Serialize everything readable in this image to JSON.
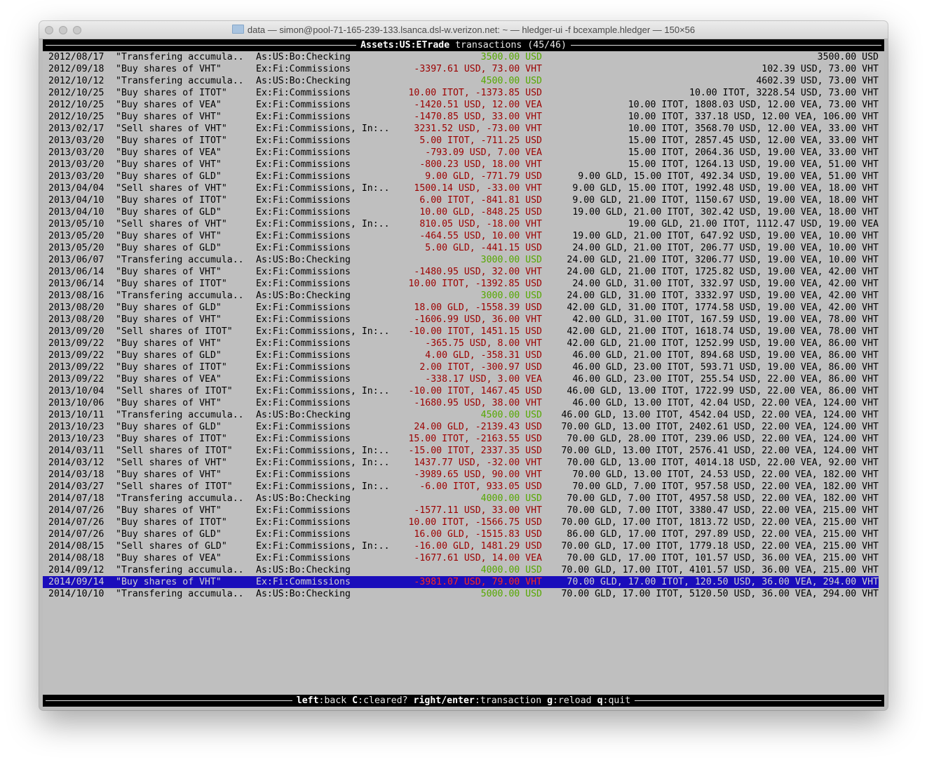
{
  "window": {
    "title": "data — simon@pool-71-165-239-133.lsanca.dsl-w.verizon.net: ~ — hledger-ui -f bcexample.hledger — 150×56"
  },
  "header": {
    "account": "Assets:US:ETrade",
    "suffix": " transactions (45/46)"
  },
  "colors": {
    "negative": "#9c0000",
    "positive": "#56a800",
    "selection": "#1a0dbb"
  },
  "selected_index": 44,
  "rows": [
    {
      "d": "2012/08/17",
      "desc": "\"Transfering accumula..",
      "acct": "As:US:Bo:Checking",
      "amt": "3500.00 USD",
      "bal": "3500.00 USD",
      "pos": true
    },
    {
      "d": "2012/09/18",
      "desc": "\"Buy shares of VHT\"",
      "acct": "Ex:Fi:Commissions",
      "amt": "-3397.61 USD, 73.00 VHT",
      "bal": "102.39 USD, 73.00 VHT",
      "pos": false
    },
    {
      "d": "2012/10/12",
      "desc": "\"Transfering accumula..",
      "acct": "As:US:Bo:Checking",
      "amt": "4500.00 USD",
      "bal": "4602.39 USD, 73.00 VHT",
      "pos": true
    },
    {
      "d": "2012/10/25",
      "desc": "\"Buy shares of ITOT\"",
      "acct": "Ex:Fi:Commissions",
      "amt": "10.00 ITOT, -1373.85 USD",
      "bal": "10.00 ITOT, 3228.54 USD, 73.00 VHT",
      "pos": false
    },
    {
      "d": "2012/10/25",
      "desc": "\"Buy shares of VEA\"",
      "acct": "Ex:Fi:Commissions",
      "amt": "-1420.51 USD, 12.00 VEA",
      "bal": "10.00 ITOT, 1808.03 USD, 12.00 VEA, 73.00 VHT",
      "pos": false
    },
    {
      "d": "2012/10/25",
      "desc": "\"Buy shares of VHT\"",
      "acct": "Ex:Fi:Commissions",
      "amt": "-1470.85 USD, 33.00 VHT",
      "bal": "10.00 ITOT, 337.18 USD, 12.00 VEA, 106.00 VHT",
      "pos": false
    },
    {
      "d": "2013/02/17",
      "desc": "\"Sell shares of VHT\"",
      "acct": "Ex:Fi:Commissions, In:..",
      "amt": "3231.52 USD, -73.00 VHT",
      "bal": "10.00 ITOT, 3568.70 USD, 12.00 VEA, 33.00 VHT",
      "pos": false
    },
    {
      "d": "2013/03/20",
      "desc": "\"Buy shares of ITOT\"",
      "acct": "Ex:Fi:Commissions",
      "amt": "5.00 ITOT, -711.25 USD",
      "bal": "15.00 ITOT, 2857.45 USD, 12.00 VEA, 33.00 VHT",
      "pos": false
    },
    {
      "d": "2013/03/20",
      "desc": "\"Buy shares of VEA\"",
      "acct": "Ex:Fi:Commissions",
      "amt": "-793.09 USD, 7.00 VEA",
      "bal": "15.00 ITOT, 2064.36 USD, 19.00 VEA, 33.00 VHT",
      "pos": false
    },
    {
      "d": "2013/03/20",
      "desc": "\"Buy shares of VHT\"",
      "acct": "Ex:Fi:Commissions",
      "amt": "-800.23 USD, 18.00 VHT",
      "bal": "15.00 ITOT, 1264.13 USD, 19.00 VEA, 51.00 VHT",
      "pos": false
    },
    {
      "d": "2013/03/20",
      "desc": "\"Buy shares of GLD\"",
      "acct": "Ex:Fi:Commissions",
      "amt": "9.00 GLD, -771.79 USD",
      "bal": "9.00 GLD, 15.00 ITOT, 492.34 USD, 19.00 VEA, 51.00 VHT",
      "pos": false
    },
    {
      "d": "2013/04/04",
      "desc": "\"Sell shares of VHT\"",
      "acct": "Ex:Fi:Commissions, In:..",
      "amt": "1500.14 USD, -33.00 VHT",
      "bal": "9.00 GLD, 15.00 ITOT, 1992.48 USD, 19.00 VEA, 18.00 VHT",
      "pos": false
    },
    {
      "d": "2013/04/10",
      "desc": "\"Buy shares of ITOT\"",
      "acct": "Ex:Fi:Commissions",
      "amt": "6.00 ITOT, -841.81 USD",
      "bal": "9.00 GLD, 21.00 ITOT, 1150.67 USD, 19.00 VEA, 18.00 VHT",
      "pos": false
    },
    {
      "d": "2013/04/10",
      "desc": "\"Buy shares of GLD\"",
      "acct": "Ex:Fi:Commissions",
      "amt": "10.00 GLD, -848.25 USD",
      "bal": "19.00 GLD, 21.00 ITOT, 302.42 USD, 19.00 VEA, 18.00 VHT",
      "pos": false
    },
    {
      "d": "2013/05/10",
      "desc": "\"Sell shares of VHT\"",
      "acct": "Ex:Fi:Commissions, In:..",
      "amt": "810.05 USD, -18.00 VHT",
      "bal": "19.00 GLD, 21.00 ITOT, 1112.47 USD, 19.00 VEA",
      "pos": false
    },
    {
      "d": "2013/05/20",
      "desc": "\"Buy shares of VHT\"",
      "acct": "Ex:Fi:Commissions",
      "amt": "-464.55 USD, 10.00 VHT",
      "bal": "19.00 GLD, 21.00 ITOT, 647.92 USD, 19.00 VEA, 10.00 VHT",
      "pos": false
    },
    {
      "d": "2013/05/20",
      "desc": "\"Buy shares of GLD\"",
      "acct": "Ex:Fi:Commissions",
      "amt": "5.00 GLD, -441.15 USD",
      "bal": "24.00 GLD, 21.00 ITOT, 206.77 USD, 19.00 VEA, 10.00 VHT",
      "pos": false
    },
    {
      "d": "2013/06/07",
      "desc": "\"Transfering accumula..",
      "acct": "As:US:Bo:Checking",
      "amt": "3000.00 USD",
      "bal": "24.00 GLD, 21.00 ITOT, 3206.77 USD, 19.00 VEA, 10.00 VHT",
      "pos": true
    },
    {
      "d": "2013/06/14",
      "desc": "\"Buy shares of VHT\"",
      "acct": "Ex:Fi:Commissions",
      "amt": "-1480.95 USD, 32.00 VHT",
      "bal": "24.00 GLD, 21.00 ITOT, 1725.82 USD, 19.00 VEA, 42.00 VHT",
      "pos": false
    },
    {
      "d": "2013/06/14",
      "desc": "\"Buy shares of ITOT\"",
      "acct": "Ex:Fi:Commissions",
      "amt": "10.00 ITOT, -1392.85 USD",
      "bal": "24.00 GLD, 31.00 ITOT, 332.97 USD, 19.00 VEA, 42.00 VHT",
      "pos": false
    },
    {
      "d": "2013/08/16",
      "desc": "\"Transfering accumula..",
      "acct": "As:US:Bo:Checking",
      "amt": "3000.00 USD",
      "bal": "24.00 GLD, 31.00 ITOT, 3332.97 USD, 19.00 VEA, 42.00 VHT",
      "pos": true
    },
    {
      "d": "2013/08/20",
      "desc": "\"Buy shares of GLD\"",
      "acct": "Ex:Fi:Commissions",
      "amt": "18.00 GLD, -1558.39 USD",
      "bal": "42.00 GLD, 31.00 ITOT, 1774.58 USD, 19.00 VEA, 42.00 VHT",
      "pos": false
    },
    {
      "d": "2013/08/20",
      "desc": "\"Buy shares of VHT\"",
      "acct": "Ex:Fi:Commissions",
      "amt": "-1606.99 USD, 36.00 VHT",
      "bal": "42.00 GLD, 31.00 ITOT, 167.59 USD, 19.00 VEA, 78.00 VHT",
      "pos": false
    },
    {
      "d": "2013/09/20",
      "desc": "\"Sell shares of ITOT\"",
      "acct": "Ex:Fi:Commissions, In:..",
      "amt": "-10.00 ITOT, 1451.15 USD",
      "bal": "42.00 GLD, 21.00 ITOT, 1618.74 USD, 19.00 VEA, 78.00 VHT",
      "pos": false
    },
    {
      "d": "2013/09/22",
      "desc": "\"Buy shares of VHT\"",
      "acct": "Ex:Fi:Commissions",
      "amt": "-365.75 USD, 8.00 VHT",
      "bal": "42.00 GLD, 21.00 ITOT, 1252.99 USD, 19.00 VEA, 86.00 VHT",
      "pos": false
    },
    {
      "d": "2013/09/22",
      "desc": "\"Buy shares of GLD\"",
      "acct": "Ex:Fi:Commissions",
      "amt": "4.00 GLD, -358.31 USD",
      "bal": "46.00 GLD, 21.00 ITOT, 894.68 USD, 19.00 VEA, 86.00 VHT",
      "pos": false
    },
    {
      "d": "2013/09/22",
      "desc": "\"Buy shares of ITOT\"",
      "acct": "Ex:Fi:Commissions",
      "amt": "2.00 ITOT, -300.97 USD",
      "bal": "46.00 GLD, 23.00 ITOT, 593.71 USD, 19.00 VEA, 86.00 VHT",
      "pos": false
    },
    {
      "d": "2013/09/22",
      "desc": "\"Buy shares of VEA\"",
      "acct": "Ex:Fi:Commissions",
      "amt": "-338.17 USD, 3.00 VEA",
      "bal": "46.00 GLD, 23.00 ITOT, 255.54 USD, 22.00 VEA, 86.00 VHT",
      "pos": false
    },
    {
      "d": "2013/10/04",
      "desc": "\"Sell shares of ITOT\"",
      "acct": "Ex:Fi:Commissions, In:..",
      "amt": "-10.00 ITOT, 1467.45 USD",
      "bal": "46.00 GLD, 13.00 ITOT, 1722.99 USD, 22.00 VEA, 86.00 VHT",
      "pos": false
    },
    {
      "d": "2013/10/06",
      "desc": "\"Buy shares of VHT\"",
      "acct": "Ex:Fi:Commissions",
      "amt": "-1680.95 USD, 38.00 VHT",
      "bal": "46.00 GLD, 13.00 ITOT, 42.04 USD, 22.00 VEA, 124.00 VHT",
      "pos": false
    },
    {
      "d": "2013/10/11",
      "desc": "\"Transfering accumula..",
      "acct": "As:US:Bo:Checking",
      "amt": "4500.00 USD",
      "bal": "46.00 GLD, 13.00 ITOT, 4542.04 USD, 22.00 VEA, 124.00 VHT",
      "pos": true
    },
    {
      "d": "2013/10/23",
      "desc": "\"Buy shares of GLD\"",
      "acct": "Ex:Fi:Commissions",
      "amt": "24.00 GLD, -2139.43 USD",
      "bal": "70.00 GLD, 13.00 ITOT, 2402.61 USD, 22.00 VEA, 124.00 VHT",
      "pos": false
    },
    {
      "d": "2013/10/23",
      "desc": "\"Buy shares of ITOT\"",
      "acct": "Ex:Fi:Commissions",
      "amt": "15.00 ITOT, -2163.55 USD",
      "bal": "70.00 GLD, 28.00 ITOT, 239.06 USD, 22.00 VEA, 124.00 VHT",
      "pos": false
    },
    {
      "d": "2014/03/11",
      "desc": "\"Sell shares of ITOT\"",
      "acct": "Ex:Fi:Commissions, In:..",
      "amt": "-15.00 ITOT, 2337.35 USD",
      "bal": "70.00 GLD, 13.00 ITOT, 2576.41 USD, 22.00 VEA, 124.00 VHT",
      "pos": false
    },
    {
      "d": "2014/03/12",
      "desc": "\"Sell shares of VHT\"",
      "acct": "Ex:Fi:Commissions, In:..",
      "amt": "1437.77 USD, -32.00 VHT",
      "bal": "70.00 GLD, 13.00 ITOT, 4014.18 USD, 22.00 VEA, 92.00 VHT",
      "pos": false
    },
    {
      "d": "2014/03/18",
      "desc": "\"Buy shares of VHT\"",
      "acct": "Ex:Fi:Commissions",
      "amt": "-3989.65 USD, 90.00 VHT",
      "bal": "70.00 GLD, 13.00 ITOT, 24.53 USD, 22.00 VEA, 182.00 VHT",
      "pos": false
    },
    {
      "d": "2014/03/27",
      "desc": "\"Sell shares of ITOT\"",
      "acct": "Ex:Fi:Commissions, In:..",
      "amt": "-6.00 ITOT, 933.05 USD",
      "bal": "70.00 GLD, 7.00 ITOT, 957.58 USD, 22.00 VEA, 182.00 VHT",
      "pos": false
    },
    {
      "d": "2014/07/18",
      "desc": "\"Transfering accumula..",
      "acct": "As:US:Bo:Checking",
      "amt": "4000.00 USD",
      "bal": "70.00 GLD, 7.00 ITOT, 4957.58 USD, 22.00 VEA, 182.00 VHT",
      "pos": true
    },
    {
      "d": "2014/07/26",
      "desc": "\"Buy shares of VHT\"",
      "acct": "Ex:Fi:Commissions",
      "amt": "-1577.11 USD, 33.00 VHT",
      "bal": "70.00 GLD, 7.00 ITOT, 3380.47 USD, 22.00 VEA, 215.00 VHT",
      "pos": false
    },
    {
      "d": "2014/07/26",
      "desc": "\"Buy shares of ITOT\"",
      "acct": "Ex:Fi:Commissions",
      "amt": "10.00 ITOT, -1566.75 USD",
      "bal": "70.00 GLD, 17.00 ITOT, 1813.72 USD, 22.00 VEA, 215.00 VHT",
      "pos": false
    },
    {
      "d": "2014/07/26",
      "desc": "\"Buy shares of GLD\"",
      "acct": "Ex:Fi:Commissions",
      "amt": "16.00 GLD, -1515.83 USD",
      "bal": "86.00 GLD, 17.00 ITOT, 297.89 USD, 22.00 VEA, 215.00 VHT",
      "pos": false
    },
    {
      "d": "2014/08/15",
      "desc": "\"Sell shares of GLD\"",
      "acct": "Ex:Fi:Commissions, In:..",
      "amt": "-16.00 GLD, 1481.29 USD",
      "bal": "70.00 GLD, 17.00 ITOT, 1779.18 USD, 22.00 VEA, 215.00 VHT",
      "pos": false
    },
    {
      "d": "2014/08/18",
      "desc": "\"Buy shares of VEA\"",
      "acct": "Ex:Fi:Commissions",
      "amt": "-1677.61 USD, 14.00 VEA",
      "bal": "70.00 GLD, 17.00 ITOT, 101.57 USD, 36.00 VEA, 215.00 VHT",
      "pos": false
    },
    {
      "d": "2014/09/12",
      "desc": "\"Transfering accumula..",
      "acct": "As:US:Bo:Checking",
      "amt": "4000.00 USD",
      "bal": "70.00 GLD, 17.00 ITOT, 4101.57 USD, 36.00 VEA, 215.00 VHT",
      "pos": true
    },
    {
      "d": "2014/09/14",
      "desc": "\"Buy shares of VHT\"",
      "acct": "Ex:Fi:Commissions",
      "amt": "-3981.07 USD, 79.00 VHT",
      "bal": "70.00 GLD, 17.00 ITOT, 120.50 USD, 36.00 VEA, 294.00 VHT",
      "pos": false
    },
    {
      "d": "2014/10/10",
      "desc": "\"Transfering accumula..",
      "acct": "As:US:Bo:Checking",
      "amt": "5000.00 USD",
      "bal": "70.00 GLD, 17.00 ITOT, 5120.50 USD, 36.00 VEA, 294.00 VHT",
      "pos": true
    }
  ],
  "footer": {
    "keys": [
      {
        "key": "left",
        "label": ":back "
      },
      {
        "key": "C",
        "label": ":cleared? "
      },
      {
        "key": "right/enter",
        "label": ":transaction "
      },
      {
        "key": "g",
        "label": ":reload "
      },
      {
        "key": "q",
        "label": ":quit"
      }
    ]
  }
}
